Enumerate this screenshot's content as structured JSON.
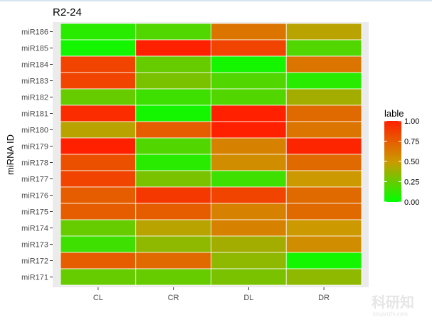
{
  "chart_data": {
    "type": "heatmap",
    "title": "R2-24",
    "xlabel": "",
    "ylabel": "miRNA ID",
    "x_categories": [
      "CL",
      "CR",
      "DL",
      "DR"
    ],
    "y_categories": [
      "miR186",
      "miR185",
      "miR184",
      "miR183",
      "miR182",
      "miR181",
      "miR180",
      "miR179",
      "miR178",
      "miR177",
      "miR176",
      "miR175",
      "miR174",
      "miR173",
      "miR172",
      "miR171"
    ],
    "values": [
      [
        0.1,
        0.2,
        0.65,
        0.45
      ],
      [
        0.05,
        1.0,
        0.85,
        0.2
      ],
      [
        0.85,
        0.25,
        0.05,
        0.65
      ],
      [
        0.85,
        0.3,
        0.2,
        0.1
      ],
      [
        0.25,
        0.15,
        0.2,
        0.4
      ],
      [
        0.95,
        0.05,
        1.0,
        0.7
      ],
      [
        0.45,
        0.75,
        1.0,
        0.65
      ],
      [
        1.0,
        0.2,
        0.6,
        0.98
      ],
      [
        0.8,
        0.1,
        0.55,
        0.7
      ],
      [
        0.85,
        0.3,
        0.15,
        0.5
      ],
      [
        0.75,
        0.9,
        0.85,
        0.7
      ],
      [
        0.75,
        0.75,
        0.6,
        0.7
      ],
      [
        0.25,
        0.45,
        0.6,
        0.5
      ],
      [
        0.15,
        0.35,
        0.4,
        0.55
      ],
      [
        0.75,
        0.7,
        0.35,
        0.05
      ],
      [
        0.25,
        0.25,
        0.3,
        0.35
      ]
    ],
    "legend": {
      "title": "lable",
      "ticks": [
        "0.00",
        "0.25",
        "0.50",
        "0.75",
        "1.00"
      ],
      "tick_values": [
        0,
        0.25,
        0.5,
        0.75,
        1.0
      ],
      "low_color": "#00ff00",
      "mid_color": "#cc9900",
      "high_color": "#ff2000",
      "placement": "right"
    },
    "panel_background": "#ebebeb",
    "grid": false
  },
  "watermark": {
    "main": "科研知",
    "sub": "keyanzhi.com"
  }
}
